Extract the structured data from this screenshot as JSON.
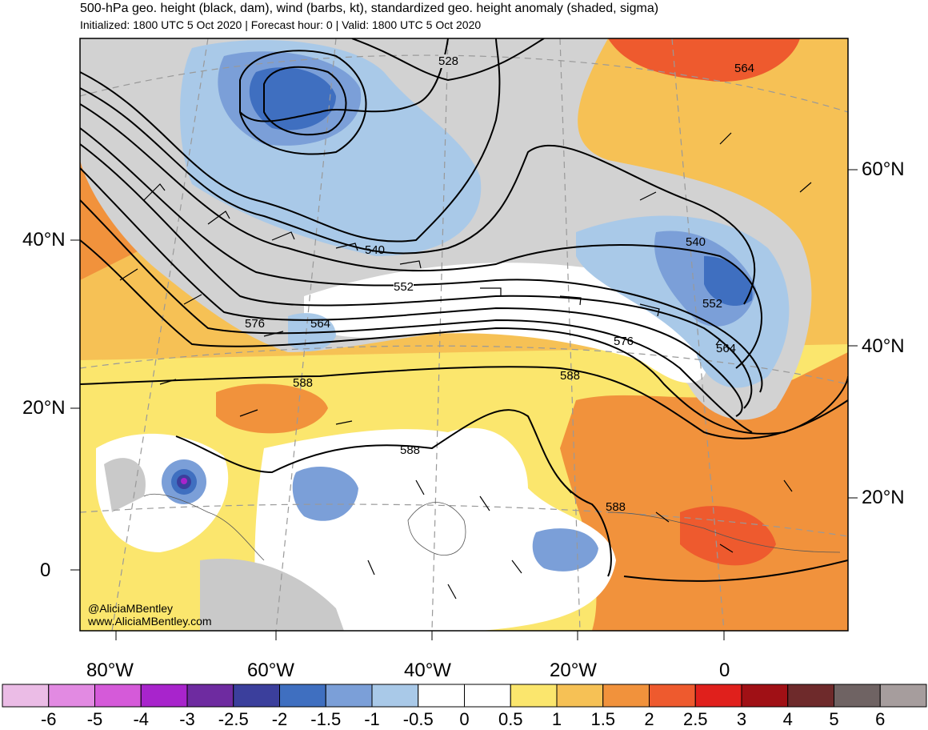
{
  "title": "500-hPa geo. height (black, dam), wind (barbs, kt), standardized geo. height anomaly (shaded, sigma)",
  "subtitle": "Initialized: 1800 UTC 5 Oct 2020 | Forecast hour: 0 | Valid: 1800 UTC 5 Oct 2020",
  "credit": [
    "@AliciaMBentley",
    "www.AliciaMBentley.com"
  ],
  "lat_labels_left": [
    "40°N",
    "20°N",
    "0"
  ],
  "lat_labels_right": [
    "60°N",
    "40°N",
    "20°N"
  ],
  "lon_labels": [
    "80°W",
    "60°W",
    "40°W",
    "20°W",
    "0"
  ],
  "contour_labels": [
    "528",
    "564",
    "540",
    "552",
    "540",
    "552",
    "564",
    "576",
    "564",
    "576",
    "588",
    "588",
    "588",
    "588"
  ],
  "colorbar": {
    "labels": [
      "-6",
      "-5",
      "-4",
      "-3",
      "-2.5",
      "-2",
      "-1.5",
      "-1",
      "-0.5",
      "0",
      "0.5",
      "1",
      "1.5",
      "2",
      "2.5",
      "3",
      "4",
      "5",
      "6"
    ],
    "colors": [
      "#ebbce6",
      "#e28ae2",
      "#d55ad9",
      "#a824cc",
      "#6e2ba0",
      "#3b3f9c",
      "#3f6fc0",
      "#7b9fd8",
      "#a9c9e8",
      "#ffffff",
      "#ffffff",
      "#fbe66d",
      "#f6c155",
      "#f1923c",
      "#ee5a2e",
      "#e0201c",
      "#a01015",
      "#6e2a2b",
      "#6f6363",
      "#a69d9d"
    ]
  },
  "colors": {
    "land_gray": "#c9c9c9",
    "ocean_white": "#ffffff",
    "contour": "#000000"
  }
}
